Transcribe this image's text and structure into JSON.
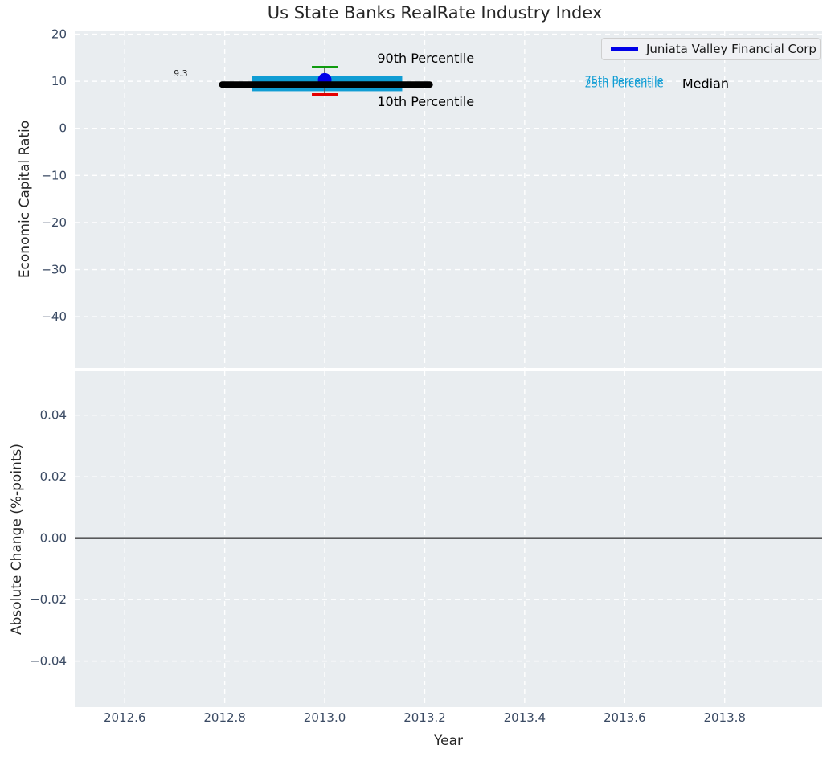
{
  "title": "Us State Banks RealRate Industry Index",
  "legend": {
    "label": "Juniata Valley Financial Corp"
  },
  "colors": {
    "company_blue": "#0000e8",
    "box_cyan": "#109dd4",
    "median_black": "#000000",
    "p90_green": "#0f9b0f",
    "p10_red": "#e50000",
    "stem_gray": "#555555",
    "axes_bg": "#e9edf0",
    "grid": "#ffffff",
    "tick_label": "#3a4a63",
    "text_dark": "#262626"
  },
  "chart_data": [
    {
      "type": "box-timeseries",
      "ylabel": "Economic Capital Ratio",
      "xlabel": "",
      "xlim": [
        2012.5,
        2013.995
      ],
      "ylim": [
        -50.9,
        20.6
      ],
      "grid": "dashed-white",
      "legend_position": "upper right",
      "xticks": [
        2012.6,
        2012.8,
        2013.0,
        2013.2,
        2013.4,
        2013.6,
        2013.8
      ],
      "xtick_labels": [
        "2012.6",
        "2012.8",
        "2013.0",
        "2013.2",
        "2013.4",
        "2013.6",
        "2013.8"
      ],
      "yticks": [
        20,
        10,
        0,
        -10,
        -20,
        -30,
        -40
      ],
      "ytick_labels": [
        "20",
        "10",
        "0",
        "−10",
        "−20",
        "−30",
        "−40"
      ],
      "point": {
        "year": 2013.0,
        "company_value": 10.3,
        "median": 9.3,
        "p10": 7.2,
        "p25": 7.9,
        "p75": 11.2,
        "p90": 13.0
      },
      "median_line_span": [
        2012.795,
        2013.21
      ],
      "box_span": [
        2012.855,
        2013.155
      ],
      "annotations": [
        {
          "id": "median-value",
          "text": "9.3",
          "x": 2012.712,
          "y": 11.6,
          "size": 11,
          "color": "#262626",
          "anchor": "middle"
        },
        {
          "id": "p90-label",
          "text": "90th Percentile",
          "x": 2013.105,
          "y": 14.9,
          "size": 16,
          "color": "#000000",
          "anchor": "start"
        },
        {
          "id": "p10-label",
          "text": "10th Percentile",
          "x": 2013.105,
          "y": 5.7,
          "size": 16,
          "color": "#000000",
          "anchor": "start"
        },
        {
          "id": "p75-label",
          "text": "75th Percentile",
          "x": 2013.52,
          "y": 10.05,
          "size": 13,
          "color": "#109dd4",
          "anchor": "start"
        },
        {
          "id": "p25-label",
          "text": "25th Percentile",
          "x": 2013.52,
          "y": 9.35,
          "size": 13,
          "color": "#109dd4",
          "anchor": "start"
        },
        {
          "id": "median-label",
          "text": "Median",
          "x": 2013.715,
          "y": 9.5,
          "size": 16,
          "color": "#000000",
          "anchor": "start"
        }
      ]
    },
    {
      "type": "line",
      "ylabel": "Absolute Change (%-points)",
      "xlabel": "Year",
      "xlim": [
        2012.5,
        2013.995
      ],
      "ylim": [
        -0.055,
        0.0543
      ],
      "grid": "dashed-white",
      "xticks": [
        2012.6,
        2012.8,
        2013.0,
        2013.2,
        2013.4,
        2013.6,
        2013.8
      ],
      "xtick_labels": [
        "2012.6",
        "2012.8",
        "2013.0",
        "2013.2",
        "2013.4",
        "2013.6",
        "2013.8"
      ],
      "yticks": [
        0.04,
        0.02,
        0,
        -0.02,
        -0.04
      ],
      "ytick_labels": [
        "0.04",
        "0.02",
        "0.00",
        "−0.02",
        "−0.04"
      ],
      "zero_line": 0.0,
      "series": []
    }
  ]
}
